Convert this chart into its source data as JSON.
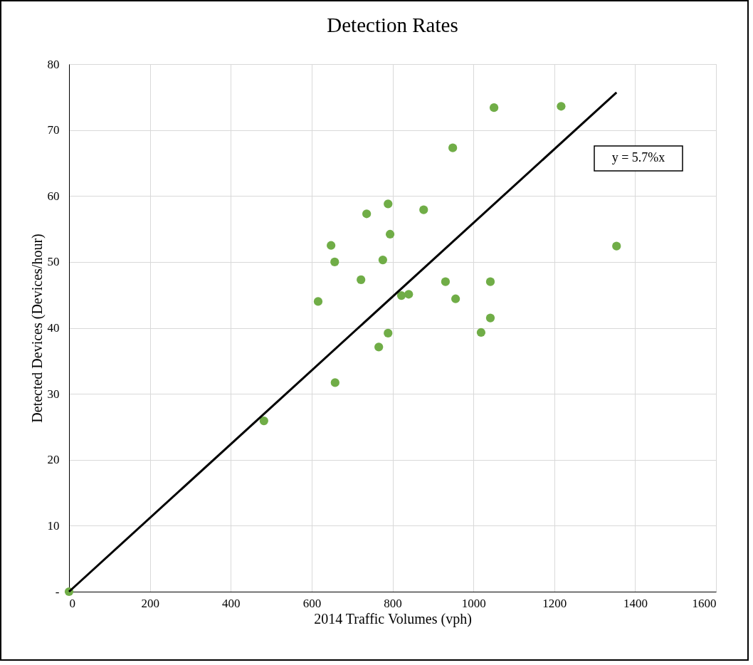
{
  "chart_data": {
    "type": "scatter",
    "title": "Detection Rates",
    "xlabel": "2014 Traffic Volumes (vph)",
    "ylabel": "Detected Devices (Devices/hour)",
    "xlim": [
      0,
      1600
    ],
    "xticks": [
      0,
      200,
      400,
      600,
      800,
      1000,
      1200,
      1400,
      1600
    ],
    "ylim": [
      0,
      80
    ],
    "yticks": [
      {
        "value": 0,
        "label": "-"
      },
      10,
      20,
      30,
      40,
      50,
      60,
      70,
      80
    ],
    "grid": true,
    "annotations": [
      "y = 5.7%x"
    ],
    "series": [
      {
        "color": "#70ad47",
        "marker": "circle",
        "x": [
          0,
          482,
          658,
          616,
          648,
          657,
          722,
          736,
          766,
          776,
          789,
          789,
          794,
          822,
          840,
          877,
          931,
          949,
          956,
          1019,
          1042,
          1042,
          1051,
          1217,
          1354
        ],
        "values": [
          0,
          25.9,
          31.7,
          44.0,
          52.5,
          50.0,
          47.3,
          57.3,
          37.1,
          50.3,
          39.2,
          58.8,
          54.2,
          44.9,
          45.1,
          57.9,
          47.0,
          67.3,
          44.4,
          39.3,
          41.5,
          47.0,
          73.4,
          73.6,
          52.4
        ]
      },
      {
        "type": "line",
        "color": "#000000",
        "line_style": "solid",
        "x": [
          0,
          1354
        ],
        "values": [
          0,
          75.7
        ]
      }
    ]
  }
}
